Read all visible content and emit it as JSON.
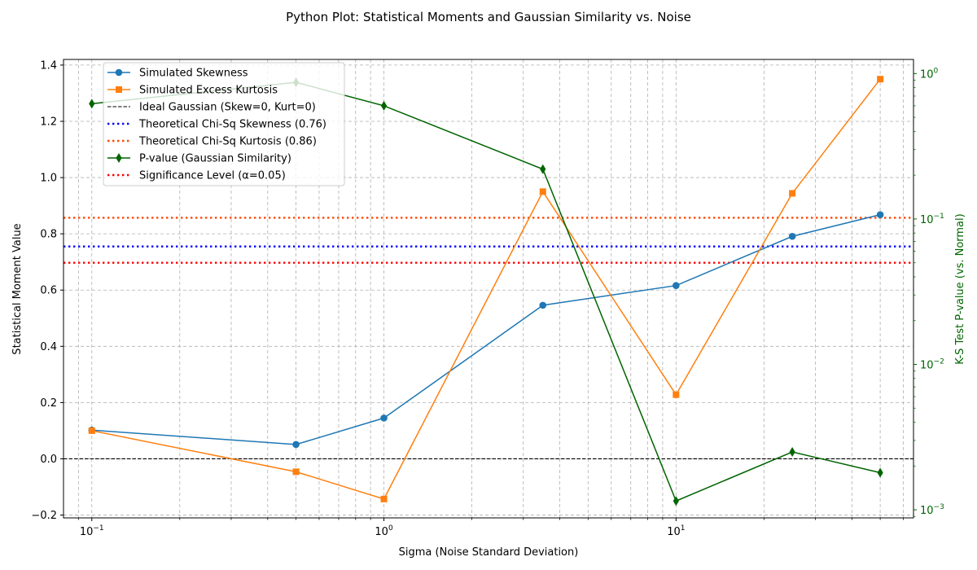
{
  "chart_data": {
    "type": "line",
    "title": "Python Plot: Statistical Moments and Gaussian Similarity vs. Noise",
    "xlabel": "Sigma (Noise Standard Deviation)",
    "ylabel": "Statistical Moment Value",
    "y2label": "K-S Test P-value (vs. Normal)",
    "xscale": "log",
    "xlim": [
      0.08,
      65
    ],
    "ylim": [
      -0.21,
      1.42
    ],
    "y2scale": "log",
    "y2lim": [
      0.00088,
      1.25
    ],
    "x": [
      0.1,
      0.5,
      1.0,
      3.5,
      10.0,
      25.0,
      50.0
    ],
    "xticks": [
      0.1,
      1,
      10
    ],
    "xtick_labels": [
      "10",
      "10",
      "10"
    ],
    "xtick_exponents": [
      "−1",
      "0",
      "1"
    ],
    "yticks": [
      -0.2,
      0.0,
      0.2,
      0.4,
      0.6,
      0.8,
      1.0,
      1.2,
      1.4
    ],
    "ytick_labels": [
      "−0.2",
      "0.0",
      "0.2",
      "0.4",
      "0.6",
      "0.8",
      "1.0",
      "1.2",
      "1.4"
    ],
    "y2ticks": [
      0.001,
      0.01,
      0.1,
      1
    ],
    "y2tick_labels": [
      "10",
      "10",
      "10",
      "10"
    ],
    "y2tick_exponents": [
      "−3",
      "−2",
      "−1",
      "0"
    ],
    "grid": true,
    "legend_position": "top-left",
    "series": [
      {
        "name": "Simulated Skewness",
        "axis": "left",
        "color": "#1f77b4",
        "marker": "circle",
        "values": [
          0.102,
          0.051,
          0.145,
          0.546,
          0.616,
          0.791,
          0.868
        ]
      },
      {
        "name": "Simulated Excess Kurtosis",
        "axis": "left",
        "color": "#ff7f0e",
        "marker": "square",
        "values": [
          0.1,
          -0.046,
          -0.143,
          0.95,
          0.228,
          0.944,
          1.35
        ]
      },
      {
        "name": "P-value (Gaussian Similarity)",
        "axis": "right",
        "color": "#006400",
        "marker": "diamond",
        "values": [
          0.62,
          0.87,
          0.6,
          0.22,
          0.00115,
          0.0025,
          0.0018
        ]
      }
    ],
    "reference_lines": [
      {
        "name": "Ideal Gaussian (Skew=0, Kurt=0)",
        "axis": "left",
        "value": 0.0,
        "color": "#000000",
        "style": "dashed"
      },
      {
        "name": "Theoretical Chi-Sq Skewness (0.76)",
        "axis": "left",
        "value": 0.755,
        "color": "#0000ff",
        "style": "dotted"
      },
      {
        "name": "Theoretical Chi-Sq Kurtosis (0.86)",
        "axis": "left",
        "value": 0.857,
        "color": "#ff4500",
        "style": "dotted"
      },
      {
        "name": "Significance Level (α=0.05)",
        "axis": "right",
        "value": 0.05,
        "color": "#ff0000",
        "style": "dotted"
      }
    ],
    "legend_order": [
      "Simulated Skewness",
      "Simulated Excess Kurtosis",
      "Ideal Gaussian (Skew=0, Kurt=0)",
      "Theoretical Chi-Sq Skewness (0.76)",
      "Theoretical Chi-Sq Kurtosis (0.86)",
      "P-value (Gaussian Similarity)",
      "Significance Level (α=0.05)"
    ]
  }
}
